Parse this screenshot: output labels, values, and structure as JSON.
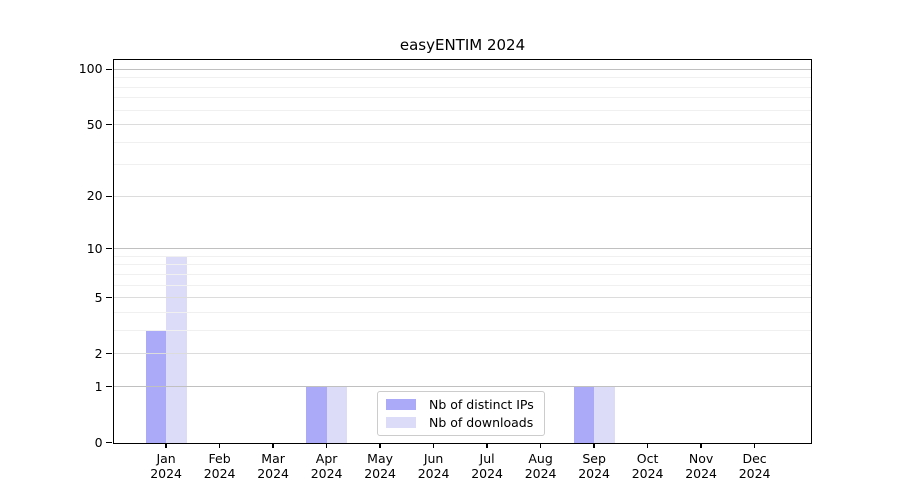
{
  "chart_data": {
    "type": "bar",
    "title": "easyENTIM 2024",
    "categories": [
      "Jan",
      "Feb",
      "Mar",
      "Apr",
      "May",
      "Jun",
      "Jul",
      "Aug",
      "Sep",
      "Oct",
      "Nov",
      "Dec"
    ],
    "category_year": "2024",
    "series": [
      {
        "name": "Nb of distinct IPs",
        "color": "#aaaaf9",
        "values": [
          3,
          0,
          0,
          1,
          0,
          0,
          0,
          0,
          1,
          0,
          0,
          0
        ]
      },
      {
        "name": "Nb of downloads",
        "color": "#dcdcf9",
        "values": [
          9,
          0,
          0,
          1,
          0,
          0,
          0,
          0,
          1,
          0,
          0,
          0
        ]
      }
    ],
    "y_scale": "log1p",
    "ylim": [
      0,
      113
    ],
    "y_ticks": [
      0,
      1,
      2,
      5,
      10,
      20,
      50,
      100
    ],
    "y_gridlines_strong": [
      1,
      10,
      100
    ],
    "y_gridlines_medium": [
      2,
      5,
      20,
      50
    ],
    "y_gridlines_minor": [
      3,
      4,
      6,
      7,
      8,
      9,
      30,
      40,
      60,
      70,
      80,
      90
    ],
    "grid": "horizontal",
    "legend": {
      "position": "lower-center",
      "entries": [
        "Nb of distinct IPs",
        "Nb of downloads"
      ]
    }
  },
  "colors": {
    "grid_strong": "#c0c0c0",
    "grid_medium": "#dcdcdc",
    "grid_minor": "#f0f0f0",
    "spine": "#000000",
    "legend_border": "#cccccc"
  }
}
